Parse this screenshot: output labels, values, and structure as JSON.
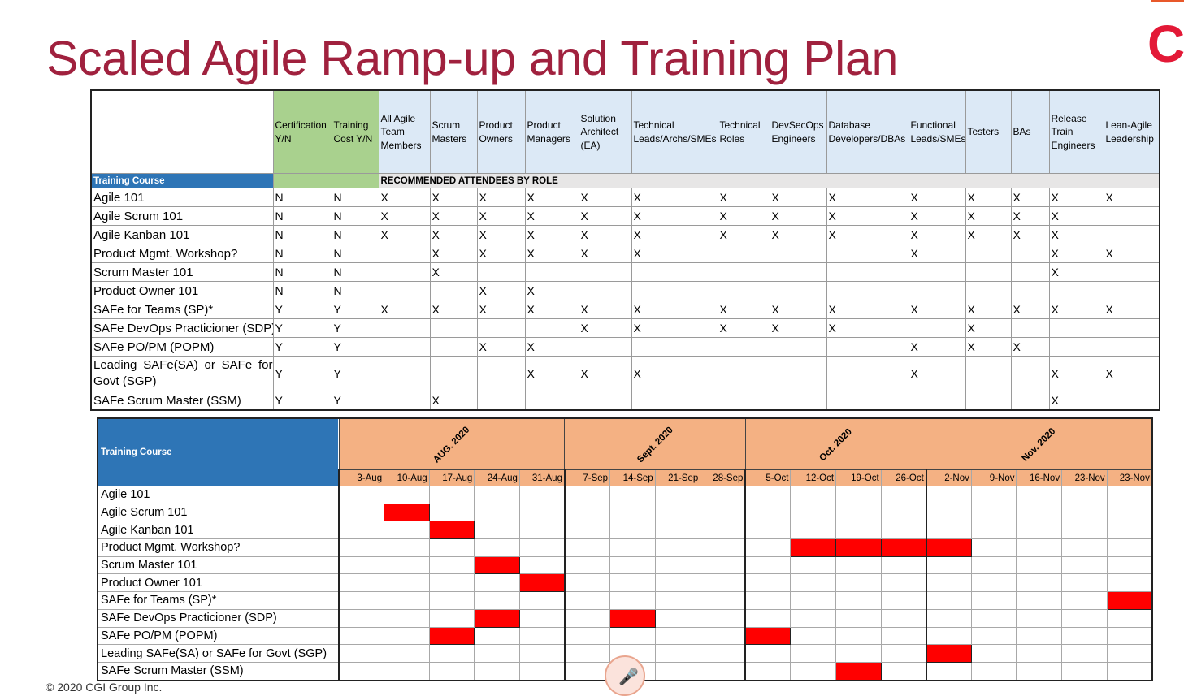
{
  "title": "Scaled Agile Ramp-up and Training Plan",
  "footer": "© 2020 CGI Group Inc.",
  "colors": {
    "title": "#a0213e",
    "role_header": "#dce9f6",
    "green": "#a9d18e",
    "blue": "#2e75b6",
    "orange": "#f4b183",
    "scheduled": "#ff0000"
  },
  "roles_table": {
    "headers": [
      "",
      "Certification Y/N",
      "Training Cost Y/N",
      "All Agile Team Members",
      "Scrum Masters",
      "Product Owners",
      "Product Managers",
      "Solution Architect (EA)",
      "Technical Leads/Archs/SMEs",
      "Technical Roles",
      "DevSecOps Engineers",
      "Database Developers/DBAs",
      "Functional Leads/SMEs",
      "Testers",
      "BAs",
      "Release Train Engineers",
      "Lean-Agile Leadership"
    ],
    "training_course_label": "Training Course",
    "recommended_label": "RECOMMENDED ATTENDEES BY ROLE",
    "rows": [
      {
        "course": "Agile 101",
        "cells": [
          "N",
          "N",
          "X",
          "X",
          "X",
          "X",
          "X",
          "X",
          "X",
          "X",
          "X",
          "X",
          "X",
          "X",
          "X",
          "X"
        ]
      },
      {
        "course": "Agile Scrum 101",
        "cells": [
          "N",
          "N",
          "X",
          "X",
          "X",
          "X",
          "X",
          "X",
          "X",
          "X",
          "X",
          "X",
          "X",
          "X",
          "X",
          ""
        ]
      },
      {
        "course": "Agile Kanban 101",
        "cells": [
          "N",
          "N",
          "X",
          "X",
          "X",
          "X",
          "X",
          "X",
          "X",
          "X",
          "X",
          "X",
          "X",
          "X",
          "X",
          ""
        ]
      },
      {
        "course": "Product Mgmt. Workshop?",
        "cells": [
          "N",
          "N",
          "",
          "X",
          "X",
          "X",
          "X",
          "X",
          "",
          "",
          "",
          "X",
          "",
          "",
          "X",
          "X"
        ]
      },
      {
        "course": "Scrum Master 101",
        "cells": [
          "N",
          "N",
          "",
          "X",
          "",
          "",
          "",
          "",
          "",
          "",
          "",
          "",
          "",
          "",
          "X",
          ""
        ]
      },
      {
        "course": "Product Owner 101",
        "cells": [
          "N",
          "N",
          "",
          "",
          "X",
          "X",
          "",
          "",
          "",
          "",
          "",
          "",
          "",
          "",
          "",
          ""
        ]
      },
      {
        "course": "SAFe for Teams (SP)*",
        "cells": [
          "Y",
          "Y",
          "X",
          "X",
          "X",
          "X",
          "X",
          "X",
          "X",
          "X",
          "X",
          "X",
          "X",
          "X",
          "X",
          "X"
        ]
      },
      {
        "course": "SAFe DevOps Practicioner (SDP)",
        "cells": [
          "Y",
          "Y",
          "",
          "",
          "",
          "",
          "X",
          "X",
          "X",
          "X",
          "X",
          "",
          "X",
          "",
          "",
          ""
        ]
      },
      {
        "course": "SAFe PO/PM (POPM)",
        "cells": [
          "Y",
          "Y",
          "",
          "",
          "X",
          "X",
          "",
          "",
          "",
          "",
          "",
          "X",
          "X",
          "X",
          "",
          ""
        ]
      },
      {
        "course": "Leading SAFe(SA) or SAFe for Govt (SGP)",
        "cells": [
          "Y",
          "Y",
          "",
          "",
          "",
          "X",
          "X",
          "X",
          "",
          "",
          "",
          "X",
          "",
          "",
          "X",
          "X"
        ]
      },
      {
        "course": "SAFe Scrum Master (SSM)",
        "cells": [
          "Y",
          "Y",
          "",
          "X",
          "",
          "",
          "",
          "",
          "",
          "",
          "",
          "",
          "",
          "",
          "X",
          ""
        ]
      }
    ]
  },
  "schedule": {
    "training_course_label": "Training Course",
    "months": [
      {
        "label": "AUG. 2020",
        "span": 5
      },
      {
        "label": "Sept. 2020",
        "span": 4
      },
      {
        "label": "Oct. 2020",
        "span": 4
      },
      {
        "label": "Nov. 2020",
        "span": 5
      }
    ],
    "weeks": [
      "3-Aug",
      "10-Aug",
      "17-Aug",
      "24-Aug",
      "31-Aug",
      "7-Sep",
      "14-Sep",
      "21-Sep",
      "28-Sep",
      "5-Oct",
      "12-Oct",
      "19-Oct",
      "26-Oct",
      "2-Nov",
      "9-Nov",
      "16-Nov",
      "23-Nov",
      "23-Nov"
    ],
    "rows": [
      {
        "course": "Agile 101",
        "on": []
      },
      {
        "course": "Agile Scrum 101",
        "on": [
          1
        ]
      },
      {
        "course": "Agile Kanban 101",
        "on": [
          2
        ]
      },
      {
        "course": "Product Mgmt. Workshop?",
        "on": [
          10,
          11,
          12,
          13
        ]
      },
      {
        "course": "Scrum Master 101",
        "on": [
          3
        ]
      },
      {
        "course": "Product Owner 101",
        "on": [
          4
        ]
      },
      {
        "course": "SAFe for Teams (SP)*",
        "on": [
          17
        ]
      },
      {
        "course": "SAFe DevOps Practicioner (SDP)",
        "on": [
          3,
          6
        ]
      },
      {
        "course": "SAFe PO/PM (POPM)",
        "on": [
          2,
          9
        ]
      },
      {
        "course": "Leading SAFe(SA) or SAFe for Govt (SGP)",
        "on": [
          13
        ]
      },
      {
        "course": "SAFe Scrum Master (SSM)",
        "on": [
          11
        ]
      }
    ]
  }
}
